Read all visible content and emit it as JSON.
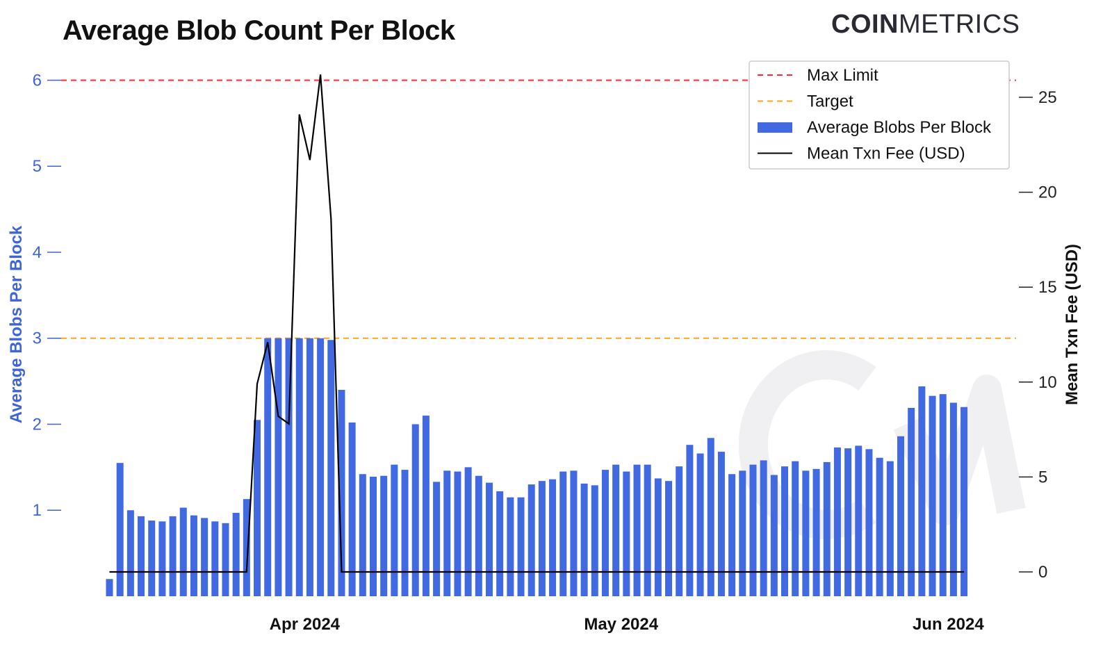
{
  "header": {
    "title": "Average Blob Count Per Block",
    "logo_bold": "COIN",
    "logo_light": "METRICS"
  },
  "chart_data": {
    "type": "bar",
    "title": "Average Blob Count Per Block",
    "ylabel": "Average Blobs Per Block",
    "y2label": "Mean Txn Fee (USD)",
    "ylim": [
      0,
      6.25
    ],
    "y2lim": [
      -1.3,
      26.3
    ],
    "yticks": [
      1,
      2,
      3,
      4,
      5,
      6
    ],
    "y2ticks": [
      0,
      5,
      10,
      15,
      20,
      25
    ],
    "xtick_labels": [
      {
        "label": "Apr 2024",
        "date": "2024-04-01"
      },
      {
        "label": "May 2024",
        "date": "2024-05-01"
      },
      {
        "label": "Jun 2024",
        "date": "2024-06-01"
      }
    ],
    "x_start": "2024-03-13",
    "hlines": [
      {
        "name": "Max Limit",
        "value": 6,
        "color": "#ff2a2a",
        "style": "dashed"
      },
      {
        "name": "Target",
        "value": 3,
        "color": "#ffa31a",
        "style": "dashed"
      }
    ],
    "legend_position": "top-right",
    "grid": false,
    "series": [
      {
        "name": "Average Blobs Per Block",
        "kind": "bar",
        "axis": "left",
        "color": "#4169e1",
        "values": [
          0.2,
          1.55,
          1.0,
          0.93,
          0.88,
          0.87,
          0.93,
          1.03,
          0.94,
          0.91,
          0.87,
          0.85,
          0.97,
          1.13,
          2.05,
          3.0,
          3.0,
          3.0,
          3.0,
          3.0,
          3.0,
          2.98,
          2.4,
          2.02,
          1.42,
          1.39,
          1.4,
          1.53,
          1.47,
          2.0,
          2.1,
          1.33,
          1.46,
          1.45,
          1.5,
          1.4,
          1.32,
          1.22,
          1.15,
          1.15,
          1.3,
          1.34,
          1.36,
          1.45,
          1.46,
          1.31,
          1.29,
          1.47,
          1.53,
          1.45,
          1.53,
          1.53,
          1.37,
          1.34,
          1.51,
          1.76,
          1.66,
          1.84,
          1.68,
          1.42,
          1.46,
          1.53,
          1.58,
          1.41,
          1.51,
          1.57,
          1.46,
          1.48,
          1.56,
          1.73,
          1.72,
          1.75,
          1.71,
          1.61,
          1.57,
          1.86,
          2.19,
          2.44,
          2.33,
          2.35,
          2.25,
          2.2
        ]
      },
      {
        "name": "Mean Txn Fee (USD)",
        "kind": "line",
        "axis": "right",
        "color": "#000000",
        "values": [
          0,
          0,
          0,
          0,
          0,
          0,
          0,
          0,
          0,
          0,
          0,
          0,
          0,
          0,
          9.9,
          12.1,
          8.2,
          7.8,
          24.1,
          21.7,
          26.2,
          18.6,
          0,
          0,
          0,
          0,
          0,
          0,
          0,
          0,
          0,
          0,
          0,
          0,
          0,
          0,
          0,
          0,
          0,
          0,
          0,
          0,
          0,
          0,
          0,
          0,
          0,
          0,
          0,
          0,
          0,
          0,
          0,
          0,
          0,
          0,
          0,
          0,
          0,
          0,
          0,
          0,
          0,
          0,
          0,
          0,
          0,
          0,
          0,
          0,
          0,
          0,
          0,
          0,
          0,
          0,
          0,
          0,
          0,
          0,
          0,
          0
        ]
      }
    ]
  },
  "legend": {
    "items": [
      {
        "label": "Max Limit",
        "color": "#ff2a2a",
        "kind": "dashed"
      },
      {
        "label": "Target",
        "color": "#ffa31a",
        "kind": "dashed"
      },
      {
        "label": "Average Blobs Per Block",
        "color": "#4169e1",
        "kind": "bar"
      },
      {
        "label": "Mean Txn Fee (USD)",
        "color": "#000000",
        "kind": "line"
      }
    ]
  }
}
